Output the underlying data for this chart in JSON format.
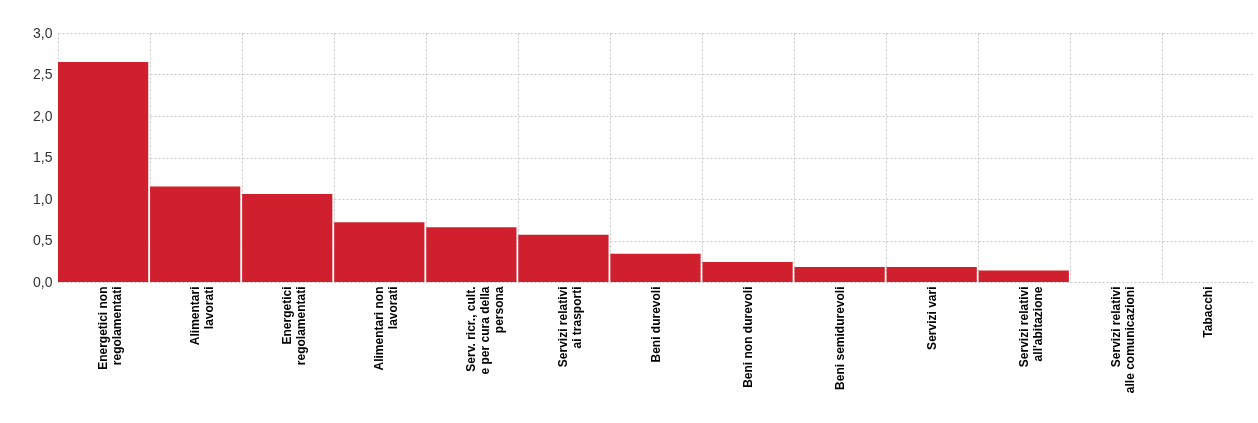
{
  "chart_data": {
    "type": "bar",
    "categories": [
      "Energetici non regolamentati",
      "Alimentari lavorati",
      "Energetici regolamentati",
      "Alimentari non lavorati",
      "Serv. ricr., cult. e per cura della persona",
      "Servizi relativi ai trasporti",
      "Beni durevoli",
      "Beni non durevoli",
      "Beni semidurevoli",
      "Servizi vari",
      "Servizi relativi all'abitazione",
      "Servizi relativi alle comunicazioni",
      "Tabacchi"
    ],
    "values": [
      2.65,
      1.15,
      1.06,
      0.72,
      0.66,
      0.57,
      0.34,
      0.24,
      0.18,
      0.18,
      0.14,
      0,
      0
    ],
    "color": "#d0202d",
    "ylim": [
      0,
      3
    ],
    "yticks": [
      {
        "value": 0,
        "label": "0,0"
      },
      {
        "value": 0.5,
        "label": "0,5"
      },
      {
        "value": 1,
        "label": "1,0"
      },
      {
        "value": 1.5,
        "label": "1,5"
      },
      {
        "value": 2,
        "label": "2,0"
      },
      {
        "value": 2.5,
        "label": "2,5"
      },
      {
        "value": 3,
        "label": "3,0"
      }
    ],
    "grid": true
  }
}
